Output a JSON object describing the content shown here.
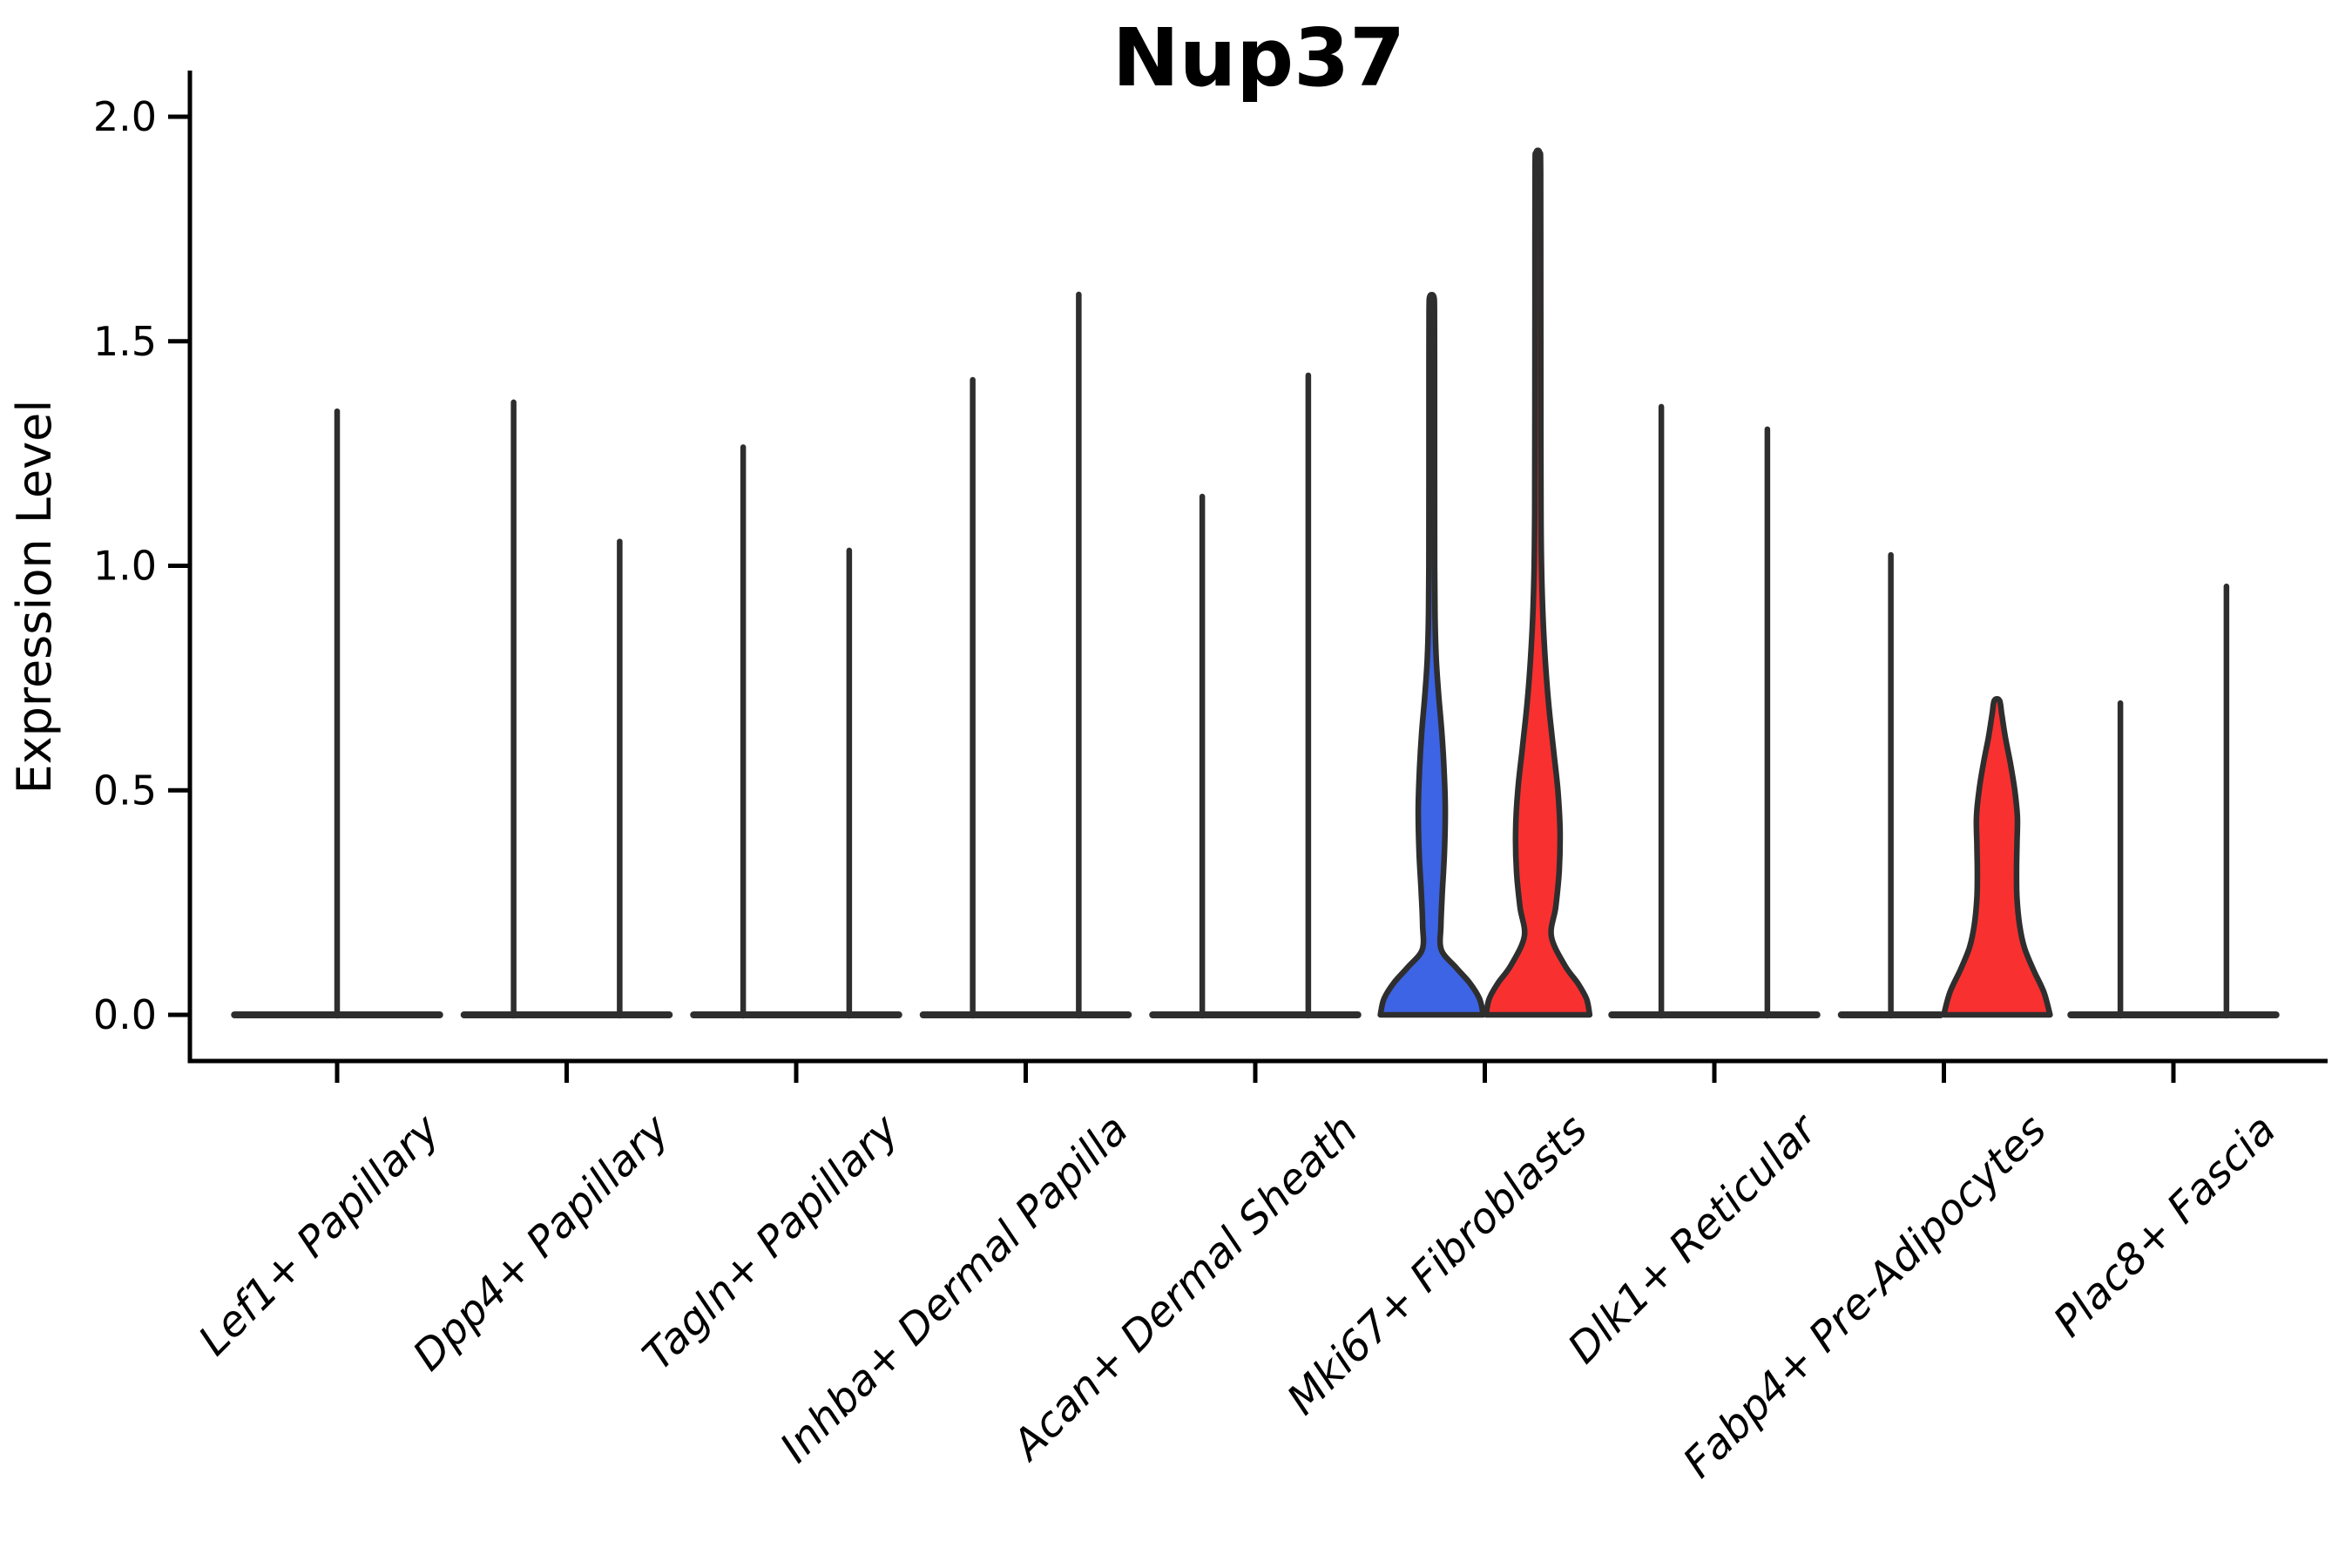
{
  "page": {
    "background": "#ffffff"
  },
  "colors": {
    "blue": "#3C64E4",
    "red": "#F93030",
    "outline": "#2E2E2E",
    "axis": "#000000",
    "text": "#000000"
  },
  "chart_data": {
    "type": "violin",
    "title": "Nup37",
    "ylabel": "Expression Level",
    "xlabel": "",
    "ylim": [
      0,
      2
    ],
    "yticks": [
      0.0,
      0.5,
      1.0,
      1.5,
      2.0
    ],
    "ytick_labels": [
      "0.0",
      "0.5",
      "1.0",
      "1.5",
      "2.0"
    ],
    "grid": false,
    "legend": "none",
    "categories": [
      "Lef1+ Papillary",
      "Dpp4+ Papillary",
      "Tagln+ Papillary",
      "Inhba+ Dermal Papilla",
      "Acan+ Dermal Sheath",
      "Mki67+ Fibroblasts",
      "Dlk1+ Reticular",
      "Fabp4+ Pre-Adipocytes",
      "Plac8+ Fascia"
    ],
    "violins": [
      {
        "category": "Lef1+ Papillary",
        "category_index": 0,
        "position": "center",
        "shape": "spike",
        "fill": null,
        "max_expression": 1.35
      },
      {
        "category": "Dpp4+ Papillary",
        "category_index": 1,
        "position": "left",
        "shape": "spike",
        "fill": null,
        "max_expression": 1.37
      },
      {
        "category": "Dpp4+ Papillary",
        "category_index": 1,
        "position": "right",
        "shape": "spike",
        "fill": null,
        "max_expression": 1.06
      },
      {
        "category": "Tagln+ Papillary",
        "category_index": 2,
        "position": "left",
        "shape": "spike",
        "fill": null,
        "max_expression": 1.27
      },
      {
        "category": "Tagln+ Papillary",
        "category_index": 2,
        "position": "right",
        "shape": "spike",
        "fill": null,
        "max_expression": 1.04
      },
      {
        "category": "Inhba+ Dermal Papilla",
        "category_index": 3,
        "position": "left",
        "shape": "spike",
        "fill": null,
        "max_expression": 1.42
      },
      {
        "category": "Inhba+ Dermal Papilla",
        "category_index": 3,
        "position": "right",
        "shape": "spike",
        "fill": null,
        "max_expression": 1.61
      },
      {
        "category": "Acan+ Dermal Sheath",
        "category_index": 4,
        "position": "left",
        "shape": "spike",
        "fill": null,
        "max_expression": 1.16
      },
      {
        "category": "Acan+ Dermal Sheath",
        "category_index": 4,
        "position": "right",
        "shape": "spike",
        "fill": null,
        "max_expression": 1.43
      },
      {
        "category": "Mki67+ Fibroblasts",
        "category_index": 5,
        "position": "left",
        "shape": "violin",
        "fill": "blue",
        "max_expression": 1.6,
        "profile": [
          [
            0,
            59
          ],
          [
            0.035,
            55
          ],
          [
            0.07,
            44
          ],
          [
            0.105,
            28
          ],
          [
            0.145,
            11
          ],
          [
            0.2,
            10.5
          ],
          [
            0.27,
            12
          ],
          [
            0.36,
            14.5
          ],
          [
            0.46,
            15.5
          ],
          [
            0.55,
            14
          ],
          [
            0.63,
            11.5
          ],
          [
            0.71,
            8
          ],
          [
            0.79,
            5.2
          ],
          [
            0.88,
            3.8
          ],
          [
            1.0,
            3.3
          ],
          [
            1.2,
            3.2
          ],
          [
            1.45,
            3.2
          ],
          [
            1.57,
            3.1
          ],
          [
            1.6,
            2.2
          ]
        ]
      },
      {
        "category": "Mki67+ Fibroblasts",
        "category_index": 5,
        "position": "right",
        "shape": "violin",
        "fill": "red",
        "max_expression": 1.92,
        "profile": [
          [
            0,
            59.5
          ],
          [
            0.035,
            56
          ],
          [
            0.07,
            46
          ],
          [
            0.11,
            31
          ],
          [
            0.175,
            15.5
          ],
          [
            0.24,
            20.5
          ],
          [
            0.32,
            24.5
          ],
          [
            0.41,
            25.5
          ],
          [
            0.5,
            23
          ],
          [
            0.59,
            18
          ],
          [
            0.69,
            12.5
          ],
          [
            0.79,
            8.5
          ],
          [
            0.89,
            5.8
          ],
          [
            1.0,
            4.2
          ],
          [
            1.12,
            3.6
          ],
          [
            1.35,
            3.4
          ],
          [
            1.6,
            3.3
          ],
          [
            1.88,
            3.2
          ],
          [
            1.92,
            2.2
          ]
        ]
      },
      {
        "category": "Dlk1+ Reticular",
        "category_index": 6,
        "position": "left",
        "shape": "spike",
        "fill": null,
        "max_expression": 1.36
      },
      {
        "category": "Dlk1+ Reticular",
        "category_index": 6,
        "position": "right",
        "shape": "spike",
        "fill": null,
        "max_expression": 1.31
      },
      {
        "category": "Fabp4+ Pre-Adipocytes",
        "category_index": 7,
        "position": "left",
        "shape": "spike",
        "fill": null,
        "max_expression": 1.03
      },
      {
        "category": "Fabp4+ Pre-Adipocytes",
        "category_index": 7,
        "position": "right",
        "shape": "violin",
        "fill": "red",
        "max_expression": 0.7,
        "profile": [
          [
            0,
            61
          ],
          [
            0.05,
            54
          ],
          [
            0.1,
            42
          ],
          [
            0.15,
            31.5
          ],
          [
            0.2,
            26
          ],
          [
            0.26,
            23
          ],
          [
            0.32,
            22.5
          ],
          [
            0.38,
            23
          ],
          [
            0.44,
            23.5
          ],
          [
            0.5,
            20.5
          ],
          [
            0.56,
            15.5
          ],
          [
            0.62,
            9.5
          ],
          [
            0.67,
            5.5
          ],
          [
            0.7,
            3
          ]
        ]
      },
      {
        "category": "Plac8+ Fascia",
        "category_index": 8,
        "position": "left",
        "shape": "spike",
        "fill": null,
        "max_expression": 0.7
      },
      {
        "category": "Plac8+ Fascia",
        "category_index": 8,
        "position": "right",
        "shape": "spike",
        "fill": null,
        "max_expression": 0.96
      }
    ]
  }
}
